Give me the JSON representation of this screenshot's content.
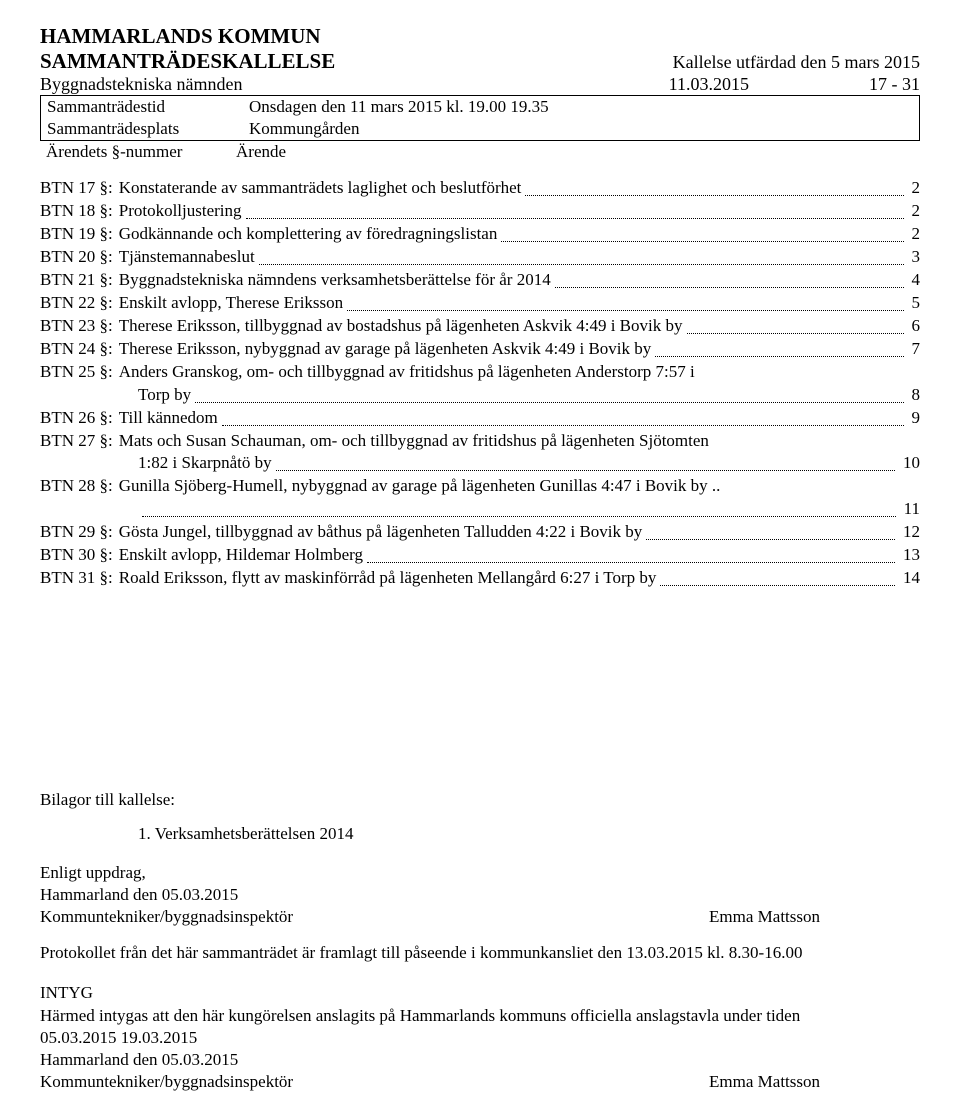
{
  "header": {
    "municipality": "HAMMARLANDS KOMMUN",
    "notice_title": "SAMMANTRÄDESKALLELSE",
    "issued_label": "Kallelse utfärdad den 5 mars 2015",
    "committee": "Byggnadstekniska nämnden",
    "date": "11.03.2015",
    "item_range": "17 - 31"
  },
  "meta": {
    "time_label": "Sammanträdestid",
    "time_value": "Onsdagen den 11 mars 2015 kl. 19.00 19.35",
    "place_label": "Sammanträdesplats",
    "place_value": "Kommungården",
    "num_label": "Ärendets §-nummer",
    "num_value": "Ärende"
  },
  "toc": [
    {
      "label": "BTN 17 §:",
      "text": "Konstaterande av sammanträdets laglighet och beslutförhet",
      "page": "2"
    },
    {
      "label": "BTN 18 §:",
      "text": "Protokolljustering",
      "page": "2"
    },
    {
      "label": "BTN 19 §:",
      "text": "Godkännande och komplettering av föredragningslistan",
      "page": "2"
    },
    {
      "label": "BTN 20 §:",
      "text": "Tjänstemannabeslut",
      "page": "3"
    },
    {
      "label": "BTN 21 §:",
      "text": "Byggnadstekniska nämndens verksamhetsberättelse för år 2014",
      "page": "4"
    },
    {
      "label": "BTN 22 §:",
      "text": "Enskilt avlopp, Therese Eriksson",
      "page": "5"
    },
    {
      "label": "BTN 23 §:",
      "text": "Therese Eriksson, tillbyggnad av bostadshus på lägenheten Askvik 4:49 i Bovik by",
      "page": "6"
    },
    {
      "label": "BTN 24 §:",
      "text": "Therese Eriksson, nybyggnad av garage på lägenheten Askvik 4:49 i Bovik by",
      "page": "7"
    },
    {
      "label": "BTN 25 §:",
      "text": "Anders Granskog, om- och tillbyggnad av fritidshus på lägenheten Anderstorp 7:57 i",
      "cont": "Torp by",
      "page": "8"
    },
    {
      "label": "BTN 26 §:",
      "text": "Till kännedom",
      "page": "9"
    },
    {
      "label": "BTN 27 §:",
      "text": "Mats och Susan Schauman, om- och tillbyggnad av fritidshus på lägenheten Sjötomten",
      "cont": "1:82 i Skarpnåtö by",
      "page": "10"
    },
    {
      "label": "BTN 28 §:",
      "text": "Gunilla Sjöberg-Humell, nybyggnad av garage på lägenheten Gunillas 4:47 i Bovik by ..",
      "cont": "",
      "page": "11"
    },
    {
      "label": "BTN 29 §:",
      "text": "Gösta Jungel, tillbyggnad av båthus på lägenheten Talludden 4:22 i Bovik by",
      "page": "12"
    },
    {
      "label": "BTN 30 §:",
      "text": "Enskilt avlopp, Hildemar Holmberg",
      "page": "13"
    },
    {
      "label": "BTN 31 §:",
      "text": "Roald Eriksson, flytt av maskinförråd på lägenheten Mellangård 6:27 i Torp by",
      "page": "14"
    }
  ],
  "attachments": {
    "heading": "Bilagor till kallelse:",
    "items": [
      "1.  Verksamhetsberättelsen 2014"
    ]
  },
  "signoff": {
    "line1": "Enligt uppdrag,",
    "line2": "Hammarland den 05.03.2015",
    "role": "Kommuntekniker/byggnadsinspektör",
    "name": "Emma Mattsson",
    "protocol_note": "Protokollet från det här sammanträdet är framlagt till påseende i kommunkansliet den 13.03.2015 kl. 8.30-16.00"
  },
  "intyg": {
    "title": "INTYG",
    "body": "Härmed intygas att den här kungörelsen anslagits på Hammarlands kommuns officiella anslagstavla under tiden",
    "dates": "05.03.2015 19.03.2015",
    "place_date": "Hammarland den 05.03.2015",
    "role": "Kommuntekniker/byggnadsinspektör",
    "name": "Emma Mattsson"
  }
}
